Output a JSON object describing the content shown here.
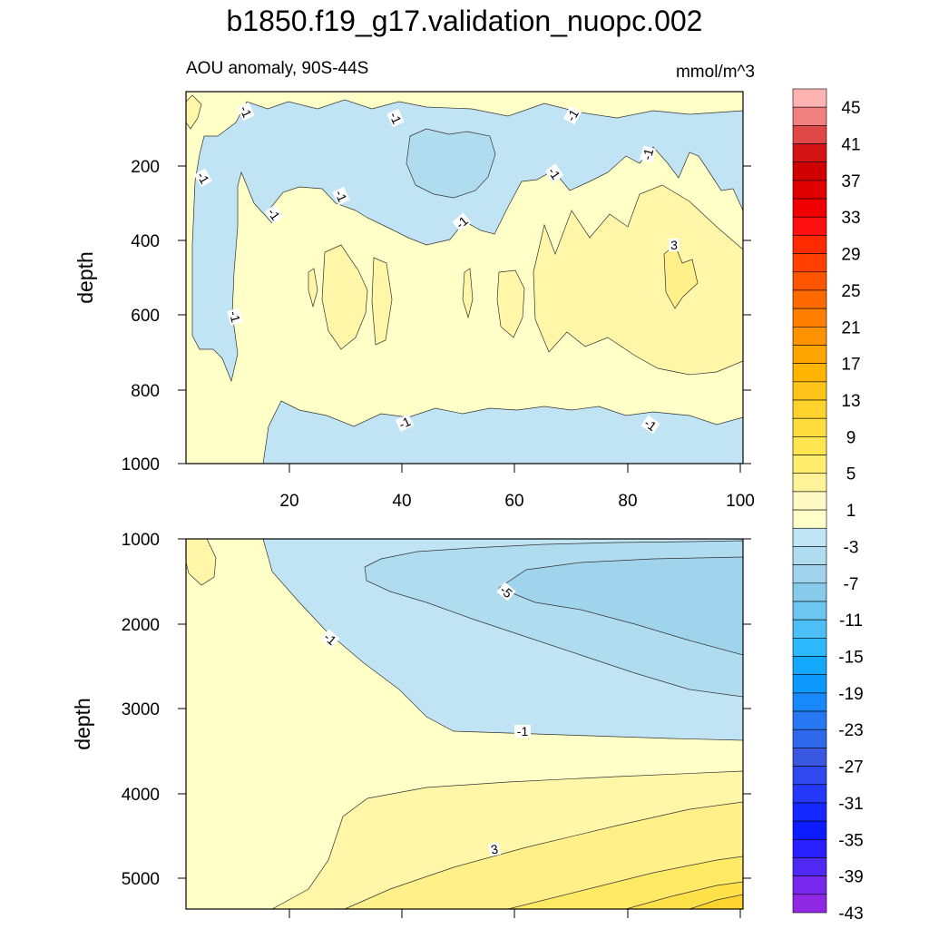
{
  "chart_data": {
    "type": "contour",
    "title": "b1850.f19_g17.validation_nuopc.002",
    "colorbar": {
      "labels": [
        "45",
        "41",
        "37",
        "33",
        "29",
        "25",
        "21",
        "17",
        "13",
        "9",
        "5",
        "1",
        "-3",
        "-7",
        "-11",
        "-15",
        "-19",
        "-23",
        "-27",
        "-31",
        "-35",
        "-39",
        "-43"
      ],
      "colors": [
        "#FFB3B3",
        "#F08080",
        "#E04848",
        "#D41414",
        "#D00000",
        "#E00000",
        "#F00000",
        "#FF1010",
        "#FF2A00",
        "#FF4000",
        "#FF5500",
        "#FF6A00",
        "#FF7E00",
        "#FF9200",
        "#FFA500",
        "#FFB400",
        "#FFC41A",
        "#FFD22C",
        "#FFDD3E",
        "#FFE650",
        "#FFEE6E",
        "#FFF39A",
        "#FFF9C4",
        "#FFFFC8",
        "#C0E4F4",
        "#B0DCF0",
        "#A0D4EC",
        "#88CCEC",
        "#6CC6F0",
        "#4CC0F6",
        "#2CB8FA",
        "#14A8FC",
        "#0C98FC",
        "#1888FA",
        "#2878F4",
        "#3068EC",
        "#3858E0",
        "#3048F0",
        "#2438FA",
        "#1428FF",
        "#0C1CFF",
        "#2A20FF",
        "#5028F4",
        "#7828EC",
        "#9028E4"
      ]
    },
    "panels": [
      {
        "subtitle_left": "AOU anomaly, 90S-44S",
        "subtitle_right": "mmol/m^3",
        "ylabel": "depth",
        "ylim": [
          1000,
          30
        ],
        "yticks": [
          "200",
          "400",
          "600",
          "800",
          "1000"
        ],
        "xlim": [
          1,
          101
        ],
        "xticks": [
          "20",
          "40",
          "60",
          "80",
          "100"
        ],
        "contour_labels": [
          "-1",
          "-1",
          "-1",
          "-1",
          "-1",
          "-1",
          "-1",
          "-1",
          "-1",
          "-1",
          "3",
          "-1",
          "-1",
          "-1"
        ]
      },
      {
        "ylabel": "depth",
        "ylim": [
          1000,
          5375
        ],
        "yticks": [
          "1000",
          "2000",
          "3000",
          "4000",
          "5000"
        ],
        "xlim": [
          1,
          101
        ],
        "contour_labels": [
          "-5",
          "-1",
          "-1",
          "3"
        ]
      }
    ]
  }
}
